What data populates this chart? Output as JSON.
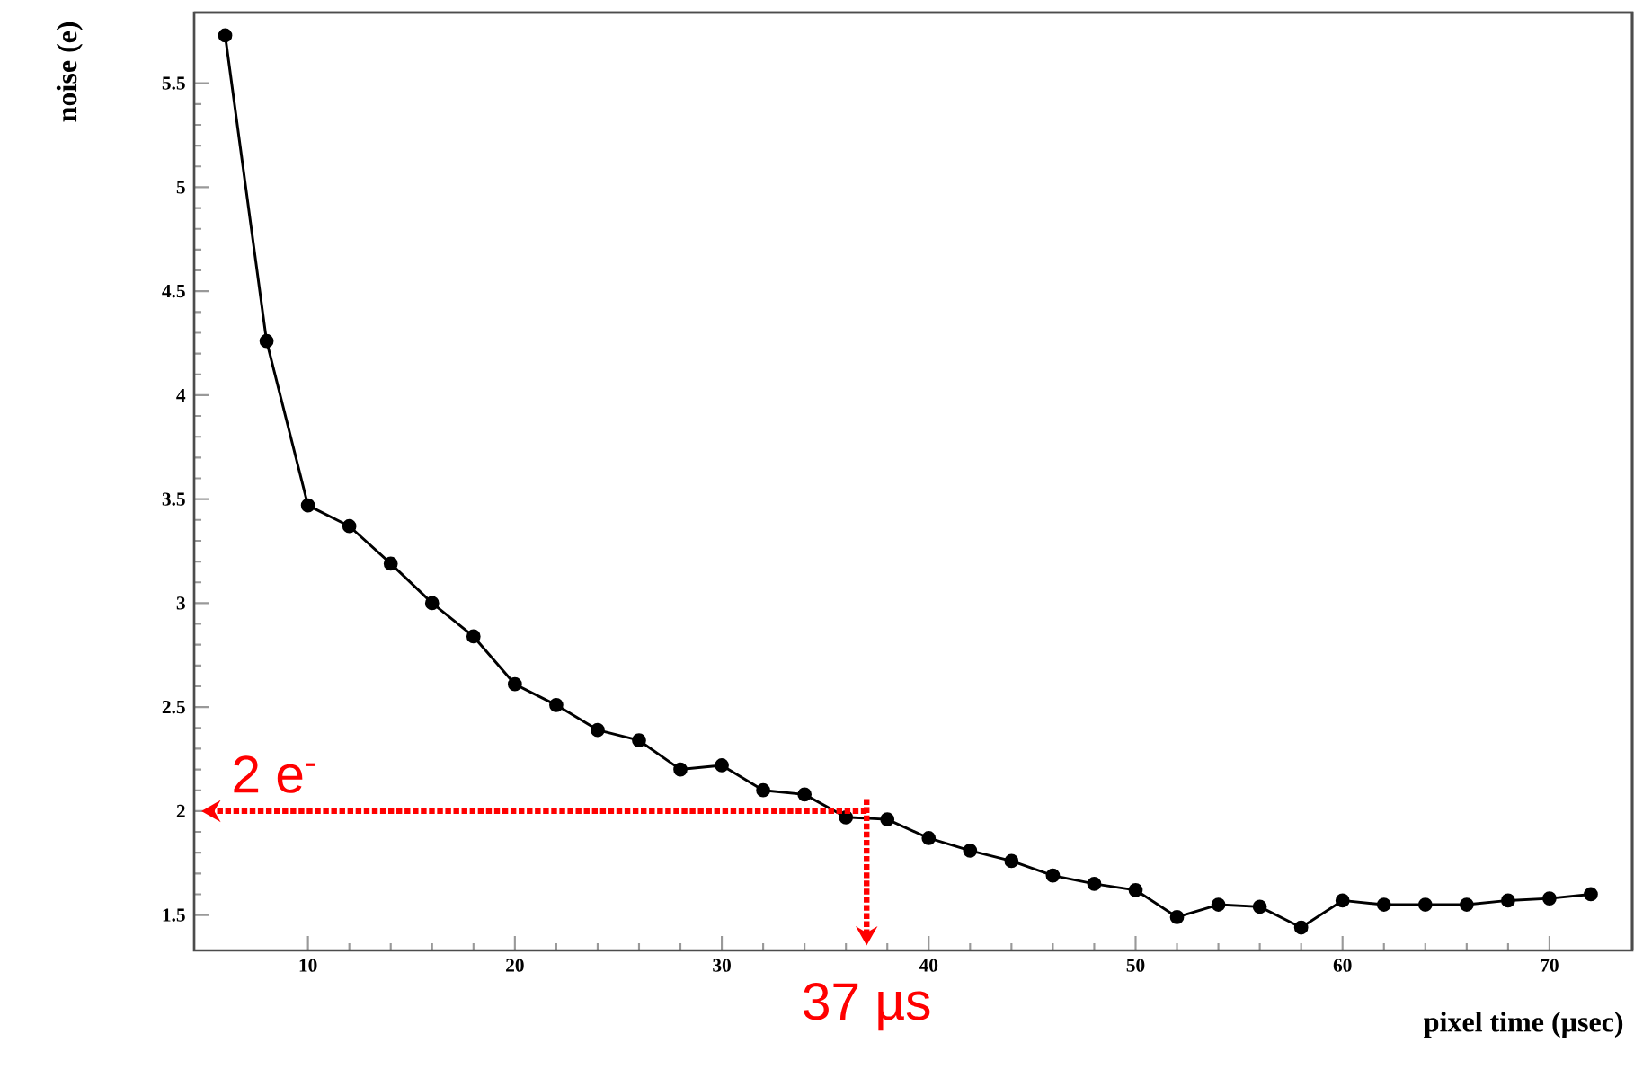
{
  "chart_data": {
    "type": "line",
    "xlabel": "pixel time (µsec)",
    "ylabel": "noise (e)",
    "x": [
      6,
      8,
      10,
      12,
      14,
      16,
      18,
      20,
      22,
      24,
      26,
      28,
      30,
      32,
      34,
      36,
      38,
      40,
      42,
      44,
      46,
      48,
      50,
      52,
      54,
      56,
      58,
      60,
      62,
      64,
      66,
      68,
      70,
      72
    ],
    "series": [
      {
        "color": "#000000",
        "values": [
          5.73,
          4.26,
          3.47,
          3.37,
          3.19,
          3.0,
          2.84,
          2.61,
          2.51,
          2.39,
          2.34,
          2.2,
          2.22,
          2.1,
          2.08,
          1.97,
          1.96,
          1.87,
          1.81,
          1.76,
          1.69,
          1.65,
          1.62,
          1.49,
          1.55,
          1.54,
          1.44,
          1.57,
          1.55,
          1.55,
          1.55,
          1.57,
          1.58,
          1.6
        ]
      }
    ],
    "xlim": [
      4.5,
      74
    ],
    "ylim": [
      1.33,
      5.84
    ],
    "xticks": [
      10,
      20,
      30,
      40,
      50,
      60,
      70
    ],
    "yticks": [
      1.5,
      2,
      2.5,
      3,
      3.5,
      4,
      4.5,
      5,
      5.5
    ],
    "marker": "circle",
    "line_style": "solid",
    "grid": false,
    "ref_lines": [
      {
        "axis": "y",
        "value": 2,
        "label": "2 e$^{-}$",
        "color": "#ff0000",
        "line_style": "dotted"
      },
      {
        "axis": "x",
        "value": 37,
        "label": "37 µs",
        "color": "#ff0000",
        "line_style": "dotted"
      }
    ]
  }
}
